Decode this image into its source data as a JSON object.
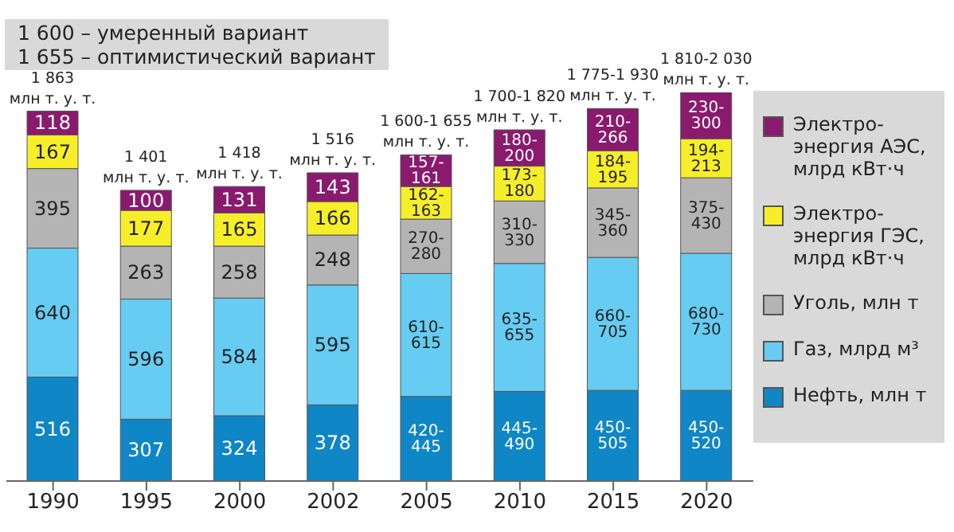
{
  "chart_data": {
    "type": "bar",
    "stacked": true,
    "legend": "right",
    "grid": false,
    "categories": [
      "1990",
      "1995",
      "2000",
      "2002",
      "2005",
      "2010",
      "2015",
      "2020"
    ],
    "series": [
      {
        "name": "Нефть, млн т",
        "color": "#0f86c6",
        "values": [
          516,
          307,
          324,
          378,
          420,
          445,
          450,
          450
        ],
        "value_labels": [
          "516",
          "307",
          "324",
          "378",
          "420-445",
          "445-490",
          "450-505",
          "450-520"
        ]
      },
      {
        "name": "Газ, млрд м³",
        "color": "#66ccf2",
        "values": [
          640,
          596,
          584,
          595,
          610,
          635,
          660,
          680
        ],
        "value_labels": [
          "640",
          "596",
          "584",
          "595",
          "610-615",
          "635-655",
          "660-705",
          "680-730"
        ]
      },
      {
        "name": "Уголь, млн т",
        "color": "#b4b4b4",
        "values": [
          395,
          263,
          258,
          248,
          270,
          310,
          345,
          375
        ],
        "value_labels": [
          "395",
          "263",
          "258",
          "248",
          "270-280",
          "310-330",
          "345-360",
          "375-430"
        ]
      },
      {
        "name": "Электро-энергия ГЭС, млрд кВт·ч",
        "color": "#f7ee2a",
        "values": [
          167,
          177,
          165,
          166,
          162,
          173,
          184,
          194
        ],
        "value_labels": [
          "167",
          "177",
          "165",
          "166",
          "162-163",
          "173-180",
          "184-195",
          "194-213"
        ]
      },
      {
        "name": "Электро-энергия АЭС, млрд кВт·ч",
        "color": "#8a1a6e",
        "values": [
          118,
          100,
          131,
          143,
          157,
          180,
          210,
          230
        ],
        "value_labels": [
          "118",
          "100",
          "131",
          "143",
          "157-161",
          "180-200",
          "210-266",
          "230-300"
        ]
      }
    ],
    "title": "1 600 – умеренный вариант",
    "subtitle": "1 655 – оптимистический вариант",
    "annotations": [
      "1 863\nмлн т. у. т.",
      "1 401\nмлн т. у. т.",
      "1 418\nмлн т. у. т.",
      "1 516\nмлн т. у. т.",
      "1 600-1 655\nмлн т. у. т.",
      "1 700-1 820\nмлн т. у. т.",
      "1 775-1 930\nмлн т. у. т.",
      "1 810-2 030\nмлн т. у. т."
    ]
  }
}
